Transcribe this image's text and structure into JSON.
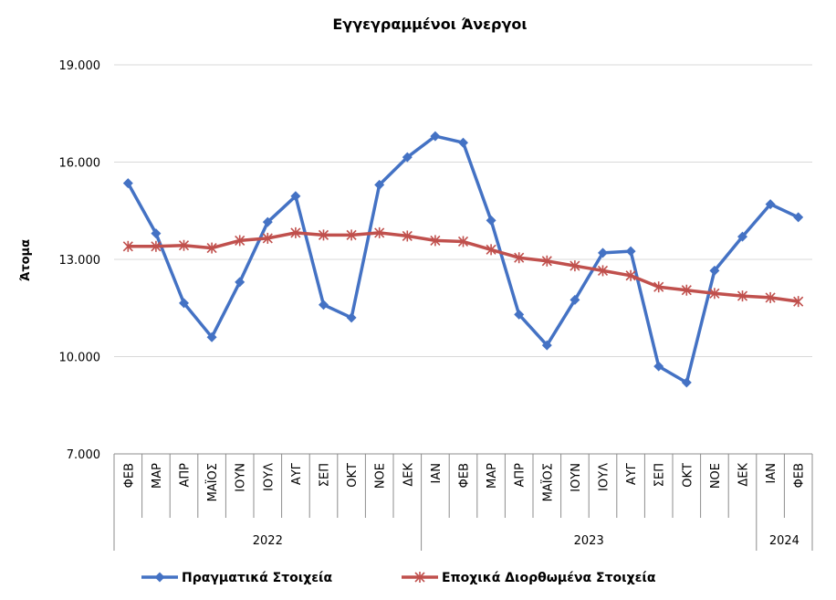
{
  "chart_data": {
    "type": "line",
    "title": "Εγγεγραμμένοι Άνεργοι",
    "ylabel": "Άτομα",
    "xlabel": "",
    "ylim": [
      7000,
      19000
    ],
    "yticks": [
      "7.000",
      "10.000",
      "13.000",
      "16.000",
      "19.000"
    ],
    "ytick_values": [
      7000,
      10000,
      13000,
      16000,
      19000
    ],
    "grid": "horizontal",
    "legend_position": "bottom",
    "categories": [
      "ΦΕΒ",
      "ΜΑΡ",
      "ΑΠΡ",
      "ΜΑΪΟΣ",
      "ΙΟΥΝ",
      "ΙΟΥΛ",
      "ΑΥΓ",
      "ΣΕΠ",
      "ΟΚΤ",
      "ΝΟΕ",
      "ΔΕΚ",
      "ΙΑΝ",
      "ΦΕΒ",
      "ΜΑΡ",
      "ΑΠΡ",
      "ΜΑΪΟΣ",
      "ΙΟΥΝ",
      "ΙΟΥΛ",
      "ΑΥΓ",
      "ΣΕΠ",
      "ΟΚΤ",
      "ΝΟΕ",
      "ΔΕΚ",
      "ΙΑΝ",
      "ΦΕΒ"
    ],
    "year_groups": [
      {
        "label": "2022",
        "count": 11
      },
      {
        "label": "2023",
        "count": 12
      },
      {
        "label": "2024",
        "count": 2
      }
    ],
    "series": [
      {
        "name": "Πραγματικά Στοιχεία",
        "color": "#4472C4",
        "marker": "diamond",
        "values": [
          15350,
          13800,
          11650,
          10600,
          12300,
          14150,
          14950,
          11600,
          11200,
          15300,
          16150,
          16800,
          16600,
          14200,
          11300,
          10350,
          11750,
          13200,
          13250,
          9700,
          9200,
          12650,
          13700,
          14700,
          14300
        ]
      },
      {
        "name": "Εποχικά Διορθωμένα Στοιχεία",
        "color": "#C0504D",
        "marker": "asterisk",
        "values": [
          13400,
          13400,
          13430,
          13350,
          13580,
          13650,
          13820,
          13750,
          13750,
          13820,
          13720,
          13580,
          13550,
          13300,
          13050,
          12950,
          12800,
          12650,
          12500,
          12150,
          12050,
          11950,
          11870,
          11820,
          11700
        ]
      }
    ]
  }
}
